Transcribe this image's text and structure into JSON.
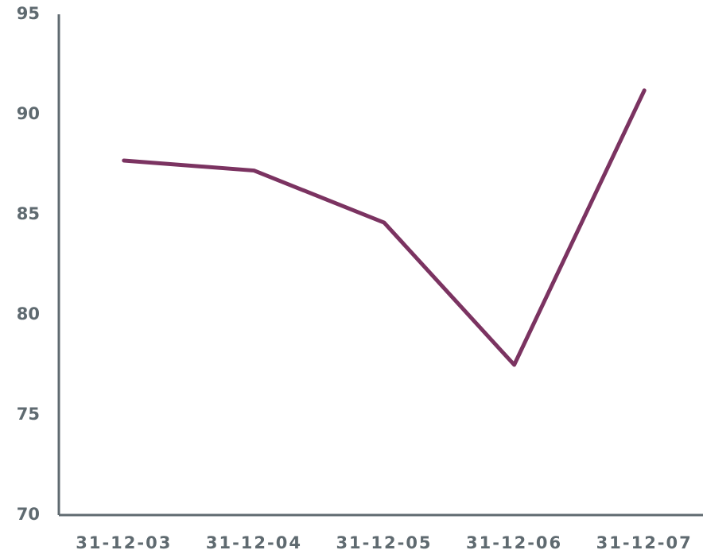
{
  "chart_data": {
    "type": "line",
    "categories": [
      "31-12-03",
      "31-12-04",
      "31-12-05",
      "31-12-06",
      "31-12-07"
    ],
    "series": [
      {
        "color": "#7b3361",
        "values": [
          87.7,
          87.2,
          84.6,
          77.5,
          91.2
        ]
      }
    ],
    "ylim": [
      70,
      95
    ],
    "yticks": [
      70,
      75,
      80,
      85,
      90,
      95
    ],
    "grid": false
  }
}
